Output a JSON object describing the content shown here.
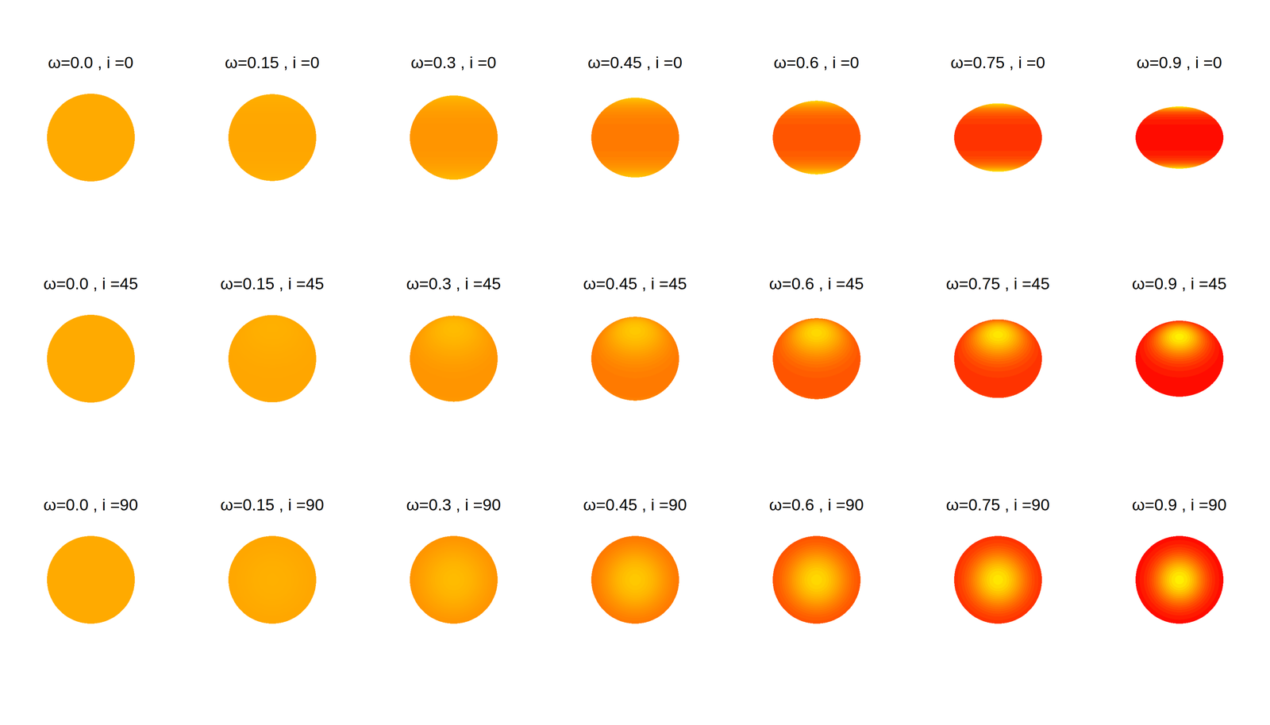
{
  "chart_data": {
    "type": "image",
    "xlim": [
      -1.1,
      1.1
    ],
    "ylim": [
      -1.1,
      1.1
    ],
    "tick_labels": false,
    "panels": [
      {
        "title": "ω=0.0 , i =0",
        "inclination": 0,
        "equatorial_radius": 1.0,
        "polar_radius": 1.0,
        "colors": [
          "#ffaa00",
          "#ffaa00"
        ]
      },
      {
        "title": "ω=0.15 , i =0",
        "inclination": 0,
        "equatorial_radius": 1.0,
        "polar_radius": 0.99,
        "colors": [
          "#ffa600",
          "#ffb000"
        ]
      },
      {
        "title": "ω=0.3 , i =0",
        "inclination": 0,
        "equatorial_radius": 1.0,
        "polar_radius": 0.96,
        "colors": [
          "#ff9500",
          "#ffbb00"
        ]
      },
      {
        "title": "ω=0.45 , i =0",
        "inclination": 0,
        "equatorial_radius": 1.0,
        "polar_radius": 0.91,
        "colors": [
          "#ff7a00",
          "#ffc800"
        ]
      },
      {
        "title": "ω=0.6 , i =0",
        "inclination": 0,
        "equatorial_radius": 1.0,
        "polar_radius": 0.84,
        "colors": [
          "#ff5500",
          "#ffd800"
        ]
      },
      {
        "title": "ω=0.75 , i =0",
        "inclination": 0,
        "equatorial_radius": 1.0,
        "polar_radius": 0.78,
        "colors": [
          "#ff3300",
          "#ffe600"
        ]
      },
      {
        "title": "ω=0.9 , i =0",
        "inclination": 0,
        "equatorial_radius": 1.0,
        "polar_radius": 0.71,
        "colors": [
          "#ff0c00",
          "#fff000"
        ]
      },
      {
        "title": "ω=0.0 , i =45",
        "inclination": 45,
        "equatorial_radius": 1.0,
        "polar_radius": 1.0,
        "colors": [
          "#ffaa00",
          "#ffaa00"
        ]
      },
      {
        "title": "ω=0.15 , i =45",
        "inclination": 45,
        "equatorial_radius": 1.0,
        "polar_radius": 0.99,
        "colors": [
          "#ffa600",
          "#ffb000"
        ]
      },
      {
        "title": "ω=0.3 , i =45",
        "inclination": 45,
        "equatorial_radius": 1.0,
        "polar_radius": 0.96,
        "colors": [
          "#ff9500",
          "#ffbb00"
        ]
      },
      {
        "title": "ω=0.45 , i =45",
        "inclination": 45,
        "equatorial_radius": 1.0,
        "polar_radius": 0.91,
        "colors": [
          "#ff7a00",
          "#ffc800"
        ]
      },
      {
        "title": "ω=0.6 , i =45",
        "inclination": 45,
        "equatorial_radius": 1.0,
        "polar_radius": 0.84,
        "colors": [
          "#ff5500",
          "#ffd800"
        ]
      },
      {
        "title": "ω=0.75 , i =45",
        "inclination": 45,
        "equatorial_radius": 1.0,
        "polar_radius": 0.78,
        "colors": [
          "#ff3300",
          "#ffe600"
        ]
      },
      {
        "title": "ω=0.9 , i =45",
        "inclination": 45,
        "equatorial_radius": 1.0,
        "polar_radius": 0.71,
        "colors": [
          "#ff0c00",
          "#fff000"
        ]
      },
      {
        "title": "ω=0.0 , i =90",
        "inclination": 90,
        "equatorial_radius": 1.0,
        "polar_radius": 1.0,
        "colors": [
          "#ffaa00",
          "#ffaa00"
        ]
      },
      {
        "title": "ω=0.15 , i =90",
        "inclination": 90,
        "equatorial_radius": 1.0,
        "polar_radius": 0.99,
        "colors": [
          "#ffa600",
          "#ffb000"
        ]
      },
      {
        "title": "ω=0.3 , i =90",
        "inclination": 90,
        "equatorial_radius": 1.0,
        "polar_radius": 0.96,
        "colors": [
          "#ff9500",
          "#ffbb00"
        ]
      },
      {
        "title": "ω=0.45 , i =90",
        "inclination": 90,
        "equatorial_radius": 1.0,
        "polar_radius": 0.91,
        "colors": [
          "#ff7a00",
          "#ffc800"
        ]
      },
      {
        "title": "ω=0.6 , i =90",
        "inclination": 90,
        "equatorial_radius": 1.0,
        "polar_radius": 0.84,
        "colors": [
          "#ff5500",
          "#ffd800"
        ]
      },
      {
        "title": "ω=0.75 , i =90",
        "inclination": 90,
        "equatorial_radius": 1.0,
        "polar_radius": 0.78,
        "colors": [
          "#ff3300",
          "#ffe600"
        ]
      },
      {
        "title": "ω=0.9 , i =90",
        "inclination": 90,
        "equatorial_radius": 1.0,
        "polar_radius": 0.71,
        "colors": [
          "#ff0c00",
          "#fff000"
        ]
      }
    ]
  }
}
